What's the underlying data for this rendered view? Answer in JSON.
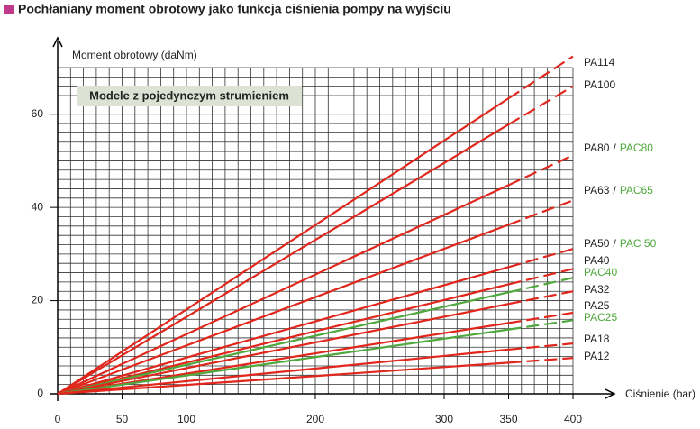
{
  "chart_data": {
    "type": "line",
    "title": "Pochłaniany moment obrotowy jako funkcja ciśnienia pompy na wyjściu",
    "box_label": "Modele z pojedynczym strumieniem",
    "y_label": "Moment obrotowy (daNm)",
    "x_label": "Ciśnienie (bar)",
    "x": [
      0,
      350,
      400
    ],
    "xlim": [
      0,
      400
    ],
    "ylim": [
      0,
      70
    ],
    "xticks": [
      0,
      50,
      100,
      200,
      300,
      350,
      400
    ],
    "yticks": [
      0,
      20,
      40,
      60
    ],
    "minor_grid": [
      10,
      2
    ],
    "last_segment_dashed": true,
    "name_separator": "/",
    "series": [
      {
        "name": "PA114",
        "color": "#e1261c",
        "values": [
          0,
          63.4,
          72.4
        ]
      },
      {
        "name": "PA100",
        "color": "#e1261c",
        "values": [
          0,
          57.8,
          66
        ]
      },
      {
        "name": "PA80",
        "alt_name": "PAC80",
        "alt_color": "#4fa83d",
        "color": "#e1261c",
        "values": [
          0,
          44.8,
          51.2
        ]
      },
      {
        "name": "PA63",
        "alt_name": "PAC65",
        "alt_color": "#4fa83d",
        "color": "#e1261c",
        "values": [
          0,
          36.3,
          41.5
        ]
      },
      {
        "name": "PA50",
        "alt_name": "PAC 50",
        "alt_color": "#4fa83d",
        "color": "#e1261c",
        "values": [
          0,
          27.2,
          31.1
        ]
      },
      {
        "name": "PA40",
        "color": "#e1261c",
        "values": [
          0,
          23.5,
          26.8
        ]
      },
      {
        "name": "PAC40",
        "color": "#4fa83d",
        "values": [
          0,
          21.8,
          24.9
        ]
      },
      {
        "name": "PA32",
        "color": "#e1261c",
        "values": [
          0,
          19.3,
          22
        ]
      },
      {
        "name": "PA25",
        "color": "#e1261c",
        "values": [
          0,
          15.2,
          17.4
        ]
      },
      {
        "name": "PAC25",
        "color": "#4fa83d",
        "values": [
          0,
          13.8,
          15.8
        ]
      },
      {
        "name": "PA18",
        "color": "#e1261c",
        "values": [
          0,
          9.5,
          10.8
        ]
      },
      {
        "name": "PA12",
        "color": "#e1261c",
        "values": [
          0,
          6.7,
          7.7
        ]
      }
    ]
  }
}
